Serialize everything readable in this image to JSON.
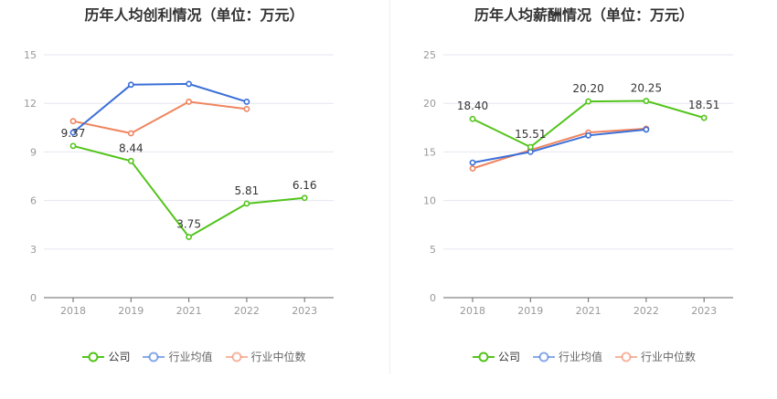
{
  "chart_data": [
    {
      "type": "line",
      "title": "历年人均创利情况（单位：万元）",
      "categories": [
        "2018",
        "2019",
        "2021",
        "2022",
        "2023"
      ],
      "ylim": [
        0,
        15
      ],
      "yticks": [
        0,
        3,
        6,
        9,
        12,
        15
      ],
      "grid": true,
      "legend_position": "bottom",
      "series": [
        {
          "name": "公司",
          "color": "#52c41a",
          "values": [
            9.37,
            8.44,
            3.75,
            5.81,
            6.16
          ],
          "show_labels": true,
          "labels": [
            "9.37",
            "8.44",
            "3.75",
            "5.81",
            "6.16"
          ]
        },
        {
          "name": "行业均值",
          "color": "#3a6fd8",
          "values": [
            10.2,
            13.15,
            13.2,
            12.1,
            null
          ],
          "show_labels": false
        },
        {
          "name": "行业中位数",
          "color": "#f0845f",
          "values": [
            10.9,
            10.15,
            12.1,
            11.65,
            null
          ],
          "show_labels": false
        }
      ]
    },
    {
      "type": "line",
      "title": "历年人均薪酬情况（单位：万元）",
      "categories": [
        "2018",
        "2019",
        "2021",
        "2022",
        "2023"
      ],
      "ylim": [
        0,
        25
      ],
      "yticks": [
        0,
        5,
        10,
        15,
        20,
        25
      ],
      "grid": true,
      "legend_position": "bottom",
      "series": [
        {
          "name": "公司",
          "color": "#52c41a",
          "values": [
            18.4,
            15.51,
            20.2,
            20.25,
            18.51
          ],
          "show_labels": true,
          "labels": [
            "18.40",
            "15.51",
            "20.20",
            "20.25",
            "18.51"
          ]
        },
        {
          "name": "行业均值",
          "color": "#3a6fd8",
          "values": [
            13.9,
            15.0,
            16.7,
            17.3,
            null
          ],
          "show_labels": false
        },
        {
          "name": "行业中位数",
          "color": "#f0845f",
          "values": [
            13.3,
            15.2,
            17.0,
            17.4,
            null
          ],
          "show_labels": false
        }
      ]
    }
  ]
}
